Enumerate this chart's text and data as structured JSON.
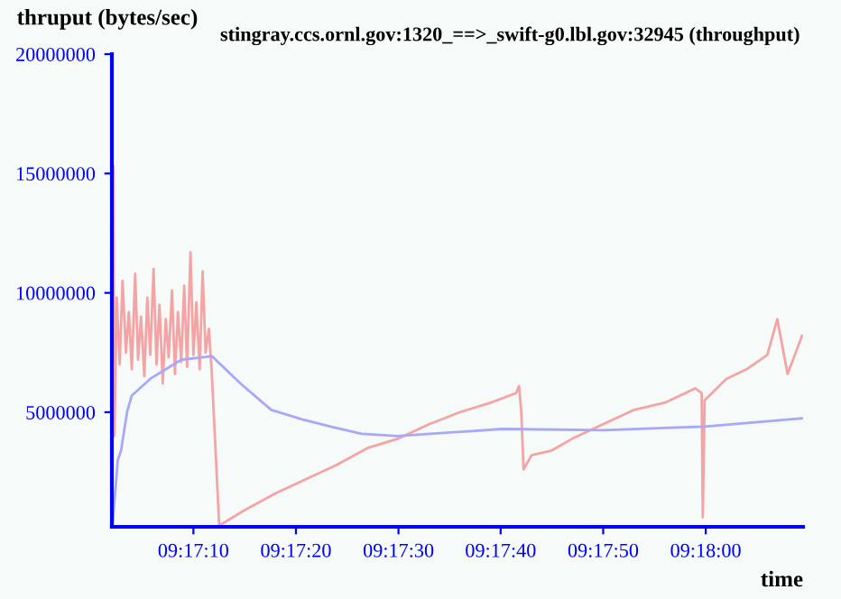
{
  "chart_data": {
    "type": "line",
    "title": "stingray.ccs.ornl.gov:1320_==>_swift-g0.lbl.gov:32945 (throughput)",
    "ylabel": "thruput (bytes/sec)",
    "xlabel": "time",
    "series": [
      {
        "color": "#f4a4a4",
        "x": [
          9.28394,
          9.28397,
          9.28403,
          9.28411,
          9.28419,
          9.28428,
          9.28436,
          9.28444,
          9.28453,
          9.28461,
          9.28469,
          9.28478,
          9.28486,
          9.28494,
          9.28503,
          9.28511,
          9.28519,
          9.28528,
          9.28536,
          9.28544,
          9.28553,
          9.28561,
          9.28569,
          9.28578,
          9.28586,
          9.28594,
          9.28603,
          9.28611,
          9.28619,
          9.28628,
          9.28636,
          9.28644,
          9.28653,
          9.28661,
          9.28681,
          9.2875,
          9.28833,
          9.28917,
          9.29,
          9.29083,
          9.29167,
          9.2925,
          9.29333,
          9.29417,
          9.29486,
          9.29494,
          9.295,
          9.29506,
          9.29528,
          9.29583,
          9.29639,
          9.29722,
          9.29806,
          9.29889,
          9.29972,
          9.29989,
          9.29992,
          9.29997,
          9.30056,
          9.30111,
          9.30167,
          9.30194,
          9.30222,
          9.30261
        ],
        "values": [
          15300000,
          4000000,
          9800000,
          7000000,
          10500000,
          7500000,
          9200000,
          6800000,
          10800000,
          7200000,
          9000000,
          6500000,
          9800000,
          7400000,
          11000000,
          7000000,
          9500000,
          6200000,
          8900000,
          7300000,
          10100000,
          6600000,
          9200000,
          7100000,
          10300000,
          6900000,
          11700000,
          7400000,
          9600000,
          6800000,
          10900000,
          7500000,
          8500000,
          6600000,
          250000,
          900000,
          1600000,
          2200000,
          2800000,
          3500000,
          3900000,
          4500000,
          5000000,
          5400000,
          5800000,
          6100000,
          5000000,
          2600000,
          3200000,
          3400000,
          3900000,
          4500000,
          5100000,
          5400000,
          6000000,
          5800000,
          600000,
          5500000,
          6400000,
          6800000,
          7400000,
          8900000,
          6600000,
          8200000
        ]
      },
      {
        "color": "#a8a8f8",
        "x": [
          9.28392,
          9.28406,
          9.28415,
          9.28431,
          9.28444,
          9.28494,
          9.28578,
          9.28661,
          9.28739,
          9.28822,
          9.28906,
          9.28983,
          9.29067,
          9.29164,
          9.2945,
          9.29722,
          9.29997,
          9.30264
        ],
        "values": [
          300000,
          3000000,
          3400000,
          5000000,
          5700000,
          6400000,
          7200000,
          7350000,
          6200000,
          5100000,
          4700000,
          4400000,
          4100000,
          4000000,
          4300000,
          4250000,
          4400000,
          4750000
        ]
      }
    ],
    "xlim": [
      9.2839,
      9.30264
    ],
    "ylim": [
      200000,
      20000000
    ],
    "xticks": [
      {
        "value": 9.28611,
        "label": "09:17:10"
      },
      {
        "value": 9.28889,
        "label": "09:17:20"
      },
      {
        "value": 9.29167,
        "label": "09:17:30"
      },
      {
        "value": 9.29444,
        "label": "09:17:40"
      },
      {
        "value": 9.29722,
        "label": "09:17:50"
      },
      {
        "value": 9.3,
        "label": "09:18:00"
      }
    ],
    "yticks": [
      5000000,
      10000000,
      15000000,
      20000000
    ],
    "grid": false,
    "legend": false,
    "marker": "none",
    "line_style": "solid"
  }
}
